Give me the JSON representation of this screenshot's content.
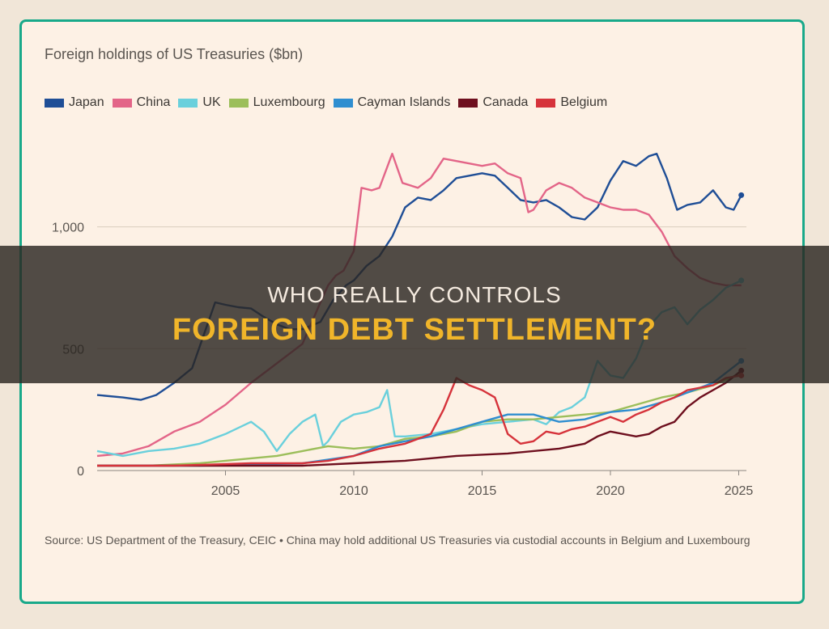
{
  "banner": {
    "line1": "WHO REALLY CONTROLS",
    "line2": "FOREIGN DEBT SETTLEMENT?"
  },
  "colors": {
    "frame": "#19a98a",
    "card_bg": "#fdf1e5",
    "banner_text": "#f4eadf",
    "banner_highlight": "#f0b52a"
  },
  "chart_data": {
    "type": "line",
    "title": "Foreign holdings of US Treasuries ($bn)",
    "xlabel": "",
    "ylabel": "",
    "xlim": [
      2000.0,
      2025.3
    ],
    "ylim": [
      0,
      1400
    ],
    "y_ticks": [
      0,
      500,
      1000
    ],
    "y_tick_labels": [
      "0",
      "500",
      "1,000"
    ],
    "x_ticks": [
      2005,
      2010,
      2015,
      2020,
      2025
    ],
    "x_tick_labels": [
      "2005",
      "2010",
      "2015",
      "2020",
      "2025"
    ],
    "grid": true,
    "legend_position": "top-left",
    "source": "Source: US Department of the Treasury, CEIC • China may hold additional US Treasuries via custodial accounts in Belgium and Luxembourg",
    "series": [
      {
        "name": "Japan",
        "color": "#1f4e96",
        "points": [
          [
            2000,
            310
          ],
          [
            2001,
            300
          ],
          [
            2001.7,
            290
          ],
          [
            2002.3,
            310
          ],
          [
            2003,
            360
          ],
          [
            2003.7,
            420
          ],
          [
            2004.3,
            600
          ],
          [
            2004.6,
            690
          ],
          [
            2005,
            680
          ],
          [
            2005.5,
            670
          ],
          [
            2006,
            665
          ],
          [
            2006.5,
            630
          ],
          [
            2007,
            600
          ],
          [
            2007.5,
            580
          ],
          [
            2008,
            580
          ],
          [
            2008.7,
            610
          ],
          [
            2009.2,
            700
          ],
          [
            2009.7,
            760
          ],
          [
            2010,
            780
          ],
          [
            2010.5,
            840
          ],
          [
            2011,
            880
          ],
          [
            2011.5,
            960
          ],
          [
            2012,
            1080
          ],
          [
            2012.5,
            1120
          ],
          [
            2013,
            1110
          ],
          [
            2013.5,
            1150
          ],
          [
            2014,
            1200
          ],
          [
            2014.5,
            1210
          ],
          [
            2015,
            1220
          ],
          [
            2015.5,
            1210
          ],
          [
            2016,
            1160
          ],
          [
            2016.5,
            1110
          ],
          [
            2017,
            1100
          ],
          [
            2017.5,
            1110
          ],
          [
            2018,
            1080
          ],
          [
            2018.5,
            1040
          ],
          [
            2019,
            1030
          ],
          [
            2019.5,
            1080
          ],
          [
            2020,
            1190
          ],
          [
            2020.5,
            1270
          ],
          [
            2021,
            1250
          ],
          [
            2021.5,
            1290
          ],
          [
            2021.8,
            1300
          ],
          [
            2022.2,
            1200
          ],
          [
            2022.6,
            1070
          ],
          [
            2023,
            1090
          ],
          [
            2023.5,
            1100
          ],
          [
            2024,
            1150
          ],
          [
            2024.5,
            1080
          ],
          [
            2024.8,
            1070
          ],
          [
            2025.1,
            1130
          ]
        ],
        "end_marker": [
          2025.1,
          1130
        ]
      },
      {
        "name": "China",
        "color": "#e36588",
        "points": [
          [
            2000,
            60
          ],
          [
            2001,
            70
          ],
          [
            2002,
            100
          ],
          [
            2003,
            160
          ],
          [
            2004,
            200
          ],
          [
            2005,
            270
          ],
          [
            2006,
            360
          ],
          [
            2007,
            440
          ],
          [
            2008,
            520
          ],
          [
            2008.7,
            690
          ],
          [
            2009,
            760
          ],
          [
            2009.3,
            800
          ],
          [
            2009.6,
            820
          ],
          [
            2010,
            900
          ],
          [
            2010.3,
            1160
          ],
          [
            2010.7,
            1150
          ],
          [
            2011,
            1160
          ],
          [
            2011.5,
            1300
          ],
          [
            2011.9,
            1180
          ],
          [
            2012.5,
            1160
          ],
          [
            2013,
            1200
          ],
          [
            2013.5,
            1280
          ],
          [
            2014,
            1270
          ],
          [
            2014.5,
            1260
          ],
          [
            2015,
            1250
          ],
          [
            2015.5,
            1260
          ],
          [
            2016,
            1220
          ],
          [
            2016.5,
            1200
          ],
          [
            2016.8,
            1060
          ],
          [
            2017,
            1070
          ],
          [
            2017.5,
            1150
          ],
          [
            2018,
            1180
          ],
          [
            2018.5,
            1160
          ],
          [
            2019,
            1120
          ],
          [
            2019.5,
            1100
          ],
          [
            2020,
            1080
          ],
          [
            2020.5,
            1070
          ],
          [
            2021,
            1070
          ],
          [
            2021.5,
            1050
          ],
          [
            2022,
            980
          ],
          [
            2022.5,
            880
          ],
          [
            2023,
            830
          ],
          [
            2023.5,
            790
          ],
          [
            2024,
            770
          ],
          [
            2024.5,
            760
          ],
          [
            2025.1,
            760
          ]
        ]
      },
      {
        "name": "UK",
        "color": "#6ad0dc",
        "points": [
          [
            2000,
            80
          ],
          [
            2001,
            60
          ],
          [
            2002,
            80
          ],
          [
            2003,
            90
          ],
          [
            2004,
            110
          ],
          [
            2005,
            150
          ],
          [
            2006,
            200
          ],
          [
            2006.5,
            160
          ],
          [
            2007,
            80
          ],
          [
            2007.5,
            150
          ],
          [
            2008,
            200
          ],
          [
            2008.5,
            230
          ],
          [
            2008.8,
            100
          ],
          [
            2009,
            120
          ],
          [
            2009.5,
            200
          ],
          [
            2010,
            230
          ],
          [
            2010.5,
            240
          ],
          [
            2011,
            260
          ],
          [
            2011.3,
            330
          ],
          [
            2011.6,
            140
          ],
          [
            2012,
            140
          ],
          [
            2013,
            150
          ],
          [
            2014,
            170
          ],
          [
            2015,
            190
          ],
          [
            2016,
            200
          ],
          [
            2017,
            210
          ],
          [
            2017.5,
            190
          ],
          [
            2018,
            240
          ],
          [
            2018.5,
            260
          ],
          [
            2019,
            300
          ],
          [
            2019.5,
            450
          ],
          [
            2020,
            390
          ],
          [
            2020.5,
            380
          ],
          [
            2021,
            460
          ],
          [
            2021.5,
            590
          ],
          [
            2022,
            650
          ],
          [
            2022.5,
            670
          ],
          [
            2023,
            600
          ],
          [
            2023.5,
            660
          ],
          [
            2024,
            700
          ],
          [
            2024.5,
            750
          ],
          [
            2025.1,
            780
          ]
        ],
        "end_marker": [
          2025.1,
          780
        ]
      },
      {
        "name": "Luxembourg",
        "color": "#9cbe5a",
        "points": [
          [
            2000,
            20
          ],
          [
            2002,
            20
          ],
          [
            2004,
            30
          ],
          [
            2005,
            40
          ],
          [
            2006,
            50
          ],
          [
            2007,
            60
          ],
          [
            2008,
            80
          ],
          [
            2009,
            100
          ],
          [
            2010,
            90
          ],
          [
            2011,
            100
          ],
          [
            2012,
            130
          ],
          [
            2013,
            140
          ],
          [
            2014,
            160
          ],
          [
            2015,
            200
          ],
          [
            2016,
            210
          ],
          [
            2017,
            210
          ],
          [
            2018,
            220
          ],
          [
            2019,
            230
          ],
          [
            2020,
            240
          ],
          [
            2021,
            270
          ],
          [
            2022,
            300
          ],
          [
            2023,
            320
          ],
          [
            2024,
            350
          ],
          [
            2025.1,
            400
          ]
        ]
      },
      {
        "name": "Cayman Islands",
        "color": "#2f8ed0",
        "points": [
          [
            2000,
            20
          ],
          [
            2004,
            20
          ],
          [
            2008,
            30
          ],
          [
            2010,
            60
          ],
          [
            2011,
            100
          ],
          [
            2012,
            120
          ],
          [
            2013,
            140
          ],
          [
            2014,
            170
          ],
          [
            2015,
            200
          ],
          [
            2016,
            230
          ],
          [
            2017,
            230
          ],
          [
            2018,
            200
          ],
          [
            2019,
            210
          ],
          [
            2020,
            240
          ],
          [
            2021,
            250
          ],
          [
            2022,
            280
          ],
          [
            2023,
            320
          ],
          [
            2024,
            360
          ],
          [
            2025.1,
            450
          ]
        ],
        "end_marker": [
          2025.1,
          450
        ]
      },
      {
        "name": "Canada",
        "color": "#6e0f1e",
        "points": [
          [
            2000,
            20
          ],
          [
            2004,
            20
          ],
          [
            2008,
            20
          ],
          [
            2010,
            30
          ],
          [
            2012,
            40
          ],
          [
            2014,
            60
          ],
          [
            2016,
            70
          ],
          [
            2018,
            90
          ],
          [
            2019,
            110
          ],
          [
            2019.5,
            140
          ],
          [
            2020,
            160
          ],
          [
            2020.5,
            150
          ],
          [
            2021,
            140
          ],
          [
            2021.5,
            150
          ],
          [
            2022,
            180
          ],
          [
            2022.5,
            200
          ],
          [
            2023,
            260
          ],
          [
            2023.5,
            300
          ],
          [
            2024,
            330
          ],
          [
            2024.5,
            360
          ],
          [
            2025.1,
            410
          ]
        ],
        "end_marker": [
          2025.1,
          410
        ]
      },
      {
        "name": "Belgium",
        "color": "#d6333b",
        "points": [
          [
            2000,
            20
          ],
          [
            2003,
            20
          ],
          [
            2006,
            30
          ],
          [
            2008,
            30
          ],
          [
            2009,
            40
          ],
          [
            2010,
            60
          ],
          [
            2011,
            90
          ],
          [
            2012,
            110
          ],
          [
            2013,
            150
          ],
          [
            2013.5,
            250
          ],
          [
            2014,
            380
          ],
          [
            2014.5,
            350
          ],
          [
            2015,
            330
          ],
          [
            2015.5,
            300
          ],
          [
            2016,
            150
          ],
          [
            2016.5,
            110
          ],
          [
            2017,
            120
          ],
          [
            2017.5,
            160
          ],
          [
            2018,
            150
          ],
          [
            2018.5,
            170
          ],
          [
            2019,
            180
          ],
          [
            2019.5,
            200
          ],
          [
            2020,
            220
          ],
          [
            2020.5,
            200
          ],
          [
            2021,
            230
          ],
          [
            2021.5,
            250
          ],
          [
            2022,
            280
          ],
          [
            2022.5,
            300
          ],
          [
            2023,
            330
          ],
          [
            2023.5,
            340
          ],
          [
            2024,
            350
          ],
          [
            2024.5,
            380
          ],
          [
            2025.1,
            390
          ]
        ],
        "end_marker": [
          2025.1,
          390
        ]
      }
    ]
  }
}
